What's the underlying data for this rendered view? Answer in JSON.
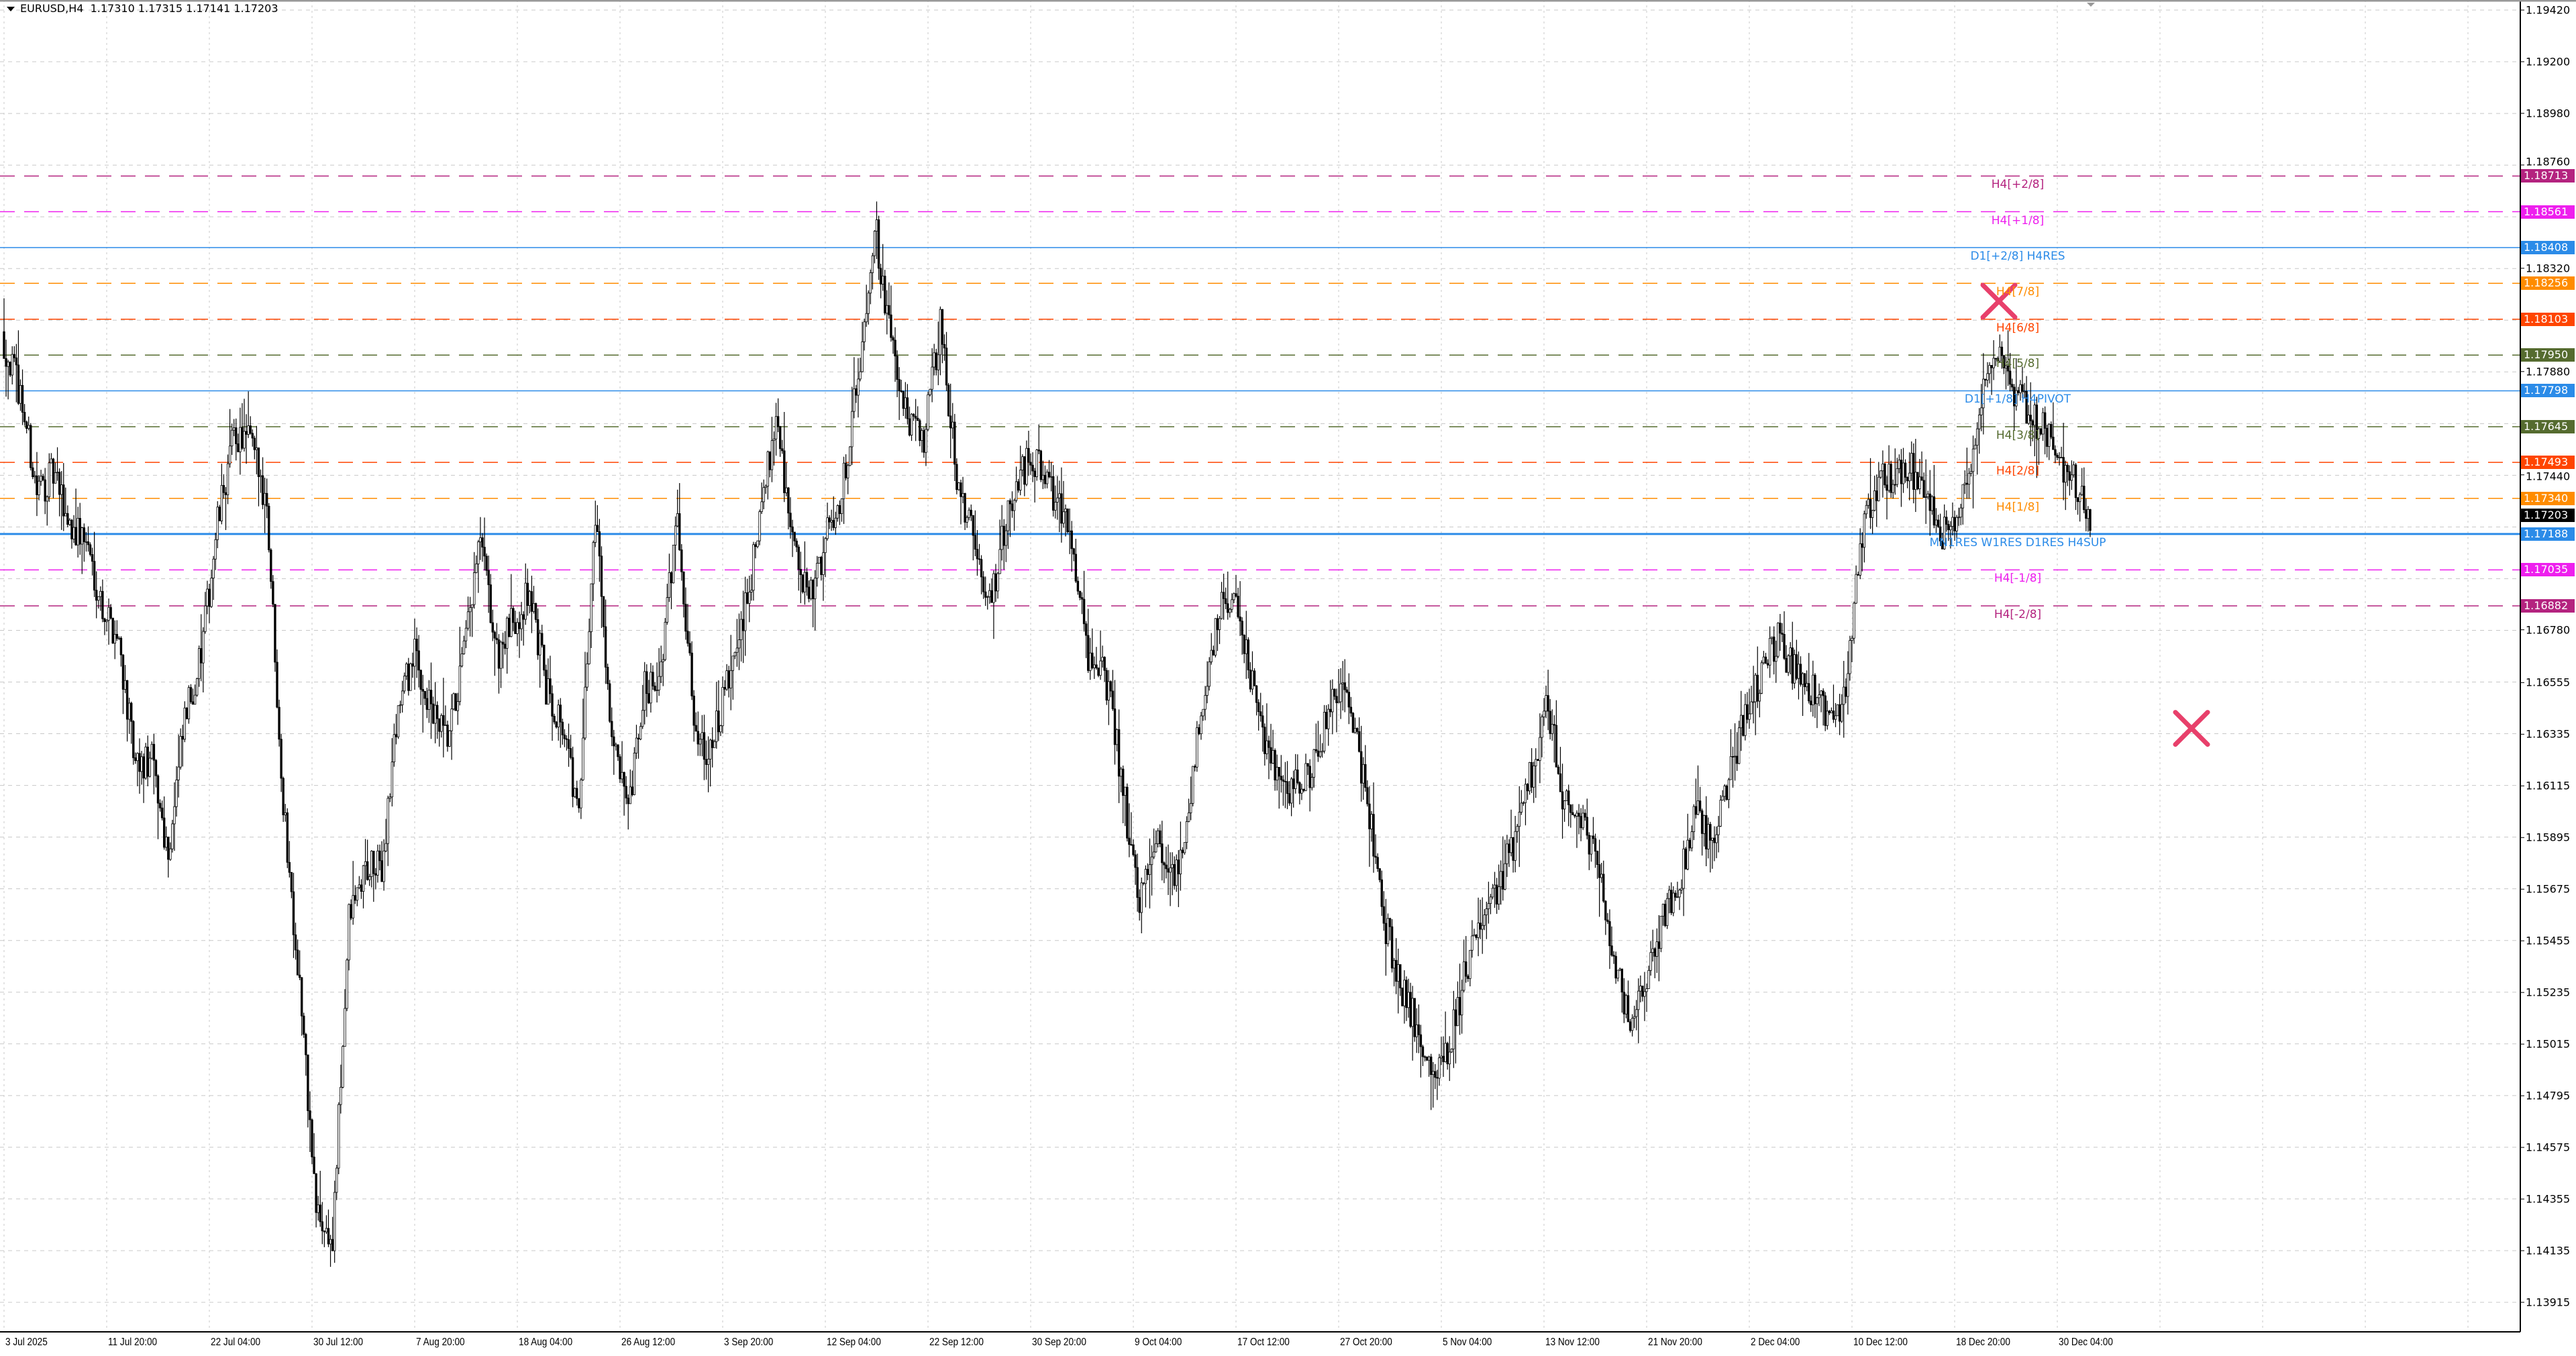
{
  "header": {
    "symbol": "EURUSD,H4",
    "ohlc": "1.17310 1.17315 1.17141 1.17203"
  },
  "chart_data": {
    "type": "candlestick",
    "symbol": "EURUSD",
    "timeframe": "H4",
    "last_bar": {
      "open": 1.1731,
      "high": 1.17315,
      "low": 1.17141,
      "close": 1.17203
    },
    "current_price_label": "1.17203",
    "current_price_color": "#000000",
    "ylim": [
      1.13915,
      1.1942
    ],
    "grid": true,
    "y_ticks": [
      "1.19420",
      "1.19200",
      "1.18980",
      "1.18760",
      "1.18320",
      "1.17880",
      "1.17440",
      "1.16780",
      "1.16555",
      "1.16335",
      "1.16115",
      "1.15895",
      "1.15675",
      "1.15455",
      "1.15235",
      "1.15015",
      "1.14795",
      "1.14575",
      "1.14355",
      "1.14135",
      "1.13915"
    ],
    "x_ticks": [
      "3 Jul 2025",
      "11 Jul 20:00",
      "22 Jul 04:00",
      "30 Jul 12:00",
      "7 Aug 20:00",
      "18 Aug 04:00",
      "26 Aug 12:00",
      "3 Sep 20:00",
      "12 Sep 04:00",
      "22 Sep 12:00",
      "30 Sep 20:00",
      "9 Oct 04:00",
      "17 Oct 12:00",
      "27 Oct 20:00",
      "5 Nov 04:00",
      "13 Nov 12:00",
      "21 Nov 20:00",
      "2 Dec 04:00",
      "10 Dec 12:00",
      "18 Dec 20:00",
      "30 Dec 04:00"
    ],
    "close_path_every_8_bars": [
      1.18,
      1.1779,
      1.1737,
      1.1744,
      1.1723,
      1.1716,
      1.1688,
      1.1674,
      1.1618,
      1.1622,
      1.1583,
      1.1639,
      1.1667,
      1.1723,
      1.1761,
      1.1758,
      1.1733,
      1.1604,
      1.1527,
      1.143,
      1.1416,
      1.1555,
      1.1576,
      1.1576,
      1.1646,
      1.1667,
      1.1643,
      1.1629,
      1.1667,
      1.1716,
      1.1667,
      1.1681,
      1.1695,
      1.1653,
      1.1639,
      1.1597,
      1.173,
      1.1632,
      1.1597,
      1.1653,
      1.166,
      1.173,
      1.1639,
      1.1625,
      1.1653,
      1.1681,
      1.1723,
      1.1772,
      1.1716,
      1.1688,
      1.1716,
      1.1737,
      1.1786,
      1.1852,
      1.18,
      1.1765,
      1.1761,
      1.1807,
      1.1744,
      1.1716,
      1.1688,
      1.1723,
      1.1747,
      1.1751,
      1.1733,
      1.1719,
      1.1667,
      1.166,
      1.1618,
      1.1562,
      1.159,
      1.1569,
      1.1594,
      1.165,
      1.1688,
      1.1688,
      1.1653,
      1.1622,
      1.1611,
      1.1611,
      1.1625,
      1.1653,
      1.1646,
      1.1604,
      1.1555,
      1.1527,
      1.151,
      1.1489,
      1.15,
      1.1534,
      1.1555,
      1.1569,
      1.159,
      1.1618,
      1.1646,
      1.1604,
      1.1597,
      1.1583,
      1.1534,
      1.1513,
      1.1527,
      1.1555,
      1.1569,
      1.1604,
      1.1583,
      1.1618,
      1.1639,
      1.166,
      1.1674,
      1.166,
      1.1653,
      1.1639,
      1.1646,
      1.1716,
      1.174,
      1.1744,
      1.1747,
      1.1733,
      1.1719,
      1.173,
      1.1761,
      1.1796,
      1.1786,
      1.1772,
      1.1765,
      1.1751,
      1.1744,
      1.172
    ],
    "levels": [
      {
        "label": "H4[+2/8]",
        "price": 1.18713,
        "price_label": "1.18713",
        "color": "#b4237f",
        "style": "dashed"
      },
      {
        "label": "H4[+1/8]",
        "price": 1.18561,
        "price_label": "1.18561",
        "color": "#ee1fee",
        "style": "dashed"
      },
      {
        "label": "D1[+2/8] H4RES",
        "price": 1.18408,
        "price_label": "1.18408",
        "color": "#2b8be8",
        "style": "solid"
      },
      {
        "label": "H4[7/8]",
        "price": 1.18256,
        "price_label": "1.18256",
        "color": "#ff8c00",
        "style": "dashed"
      },
      {
        "label": "H4[6/8]",
        "price": 1.18103,
        "price_label": "1.18103",
        "color": "#ff4500",
        "style": "dashed"
      },
      {
        "label": "H4[5/8]",
        "price": 1.1795,
        "price_label": "1.17950",
        "color": "#556b2f",
        "style": "dashed"
      },
      {
        "label": "D1[+1/8] H4PIVOT",
        "price": 1.17798,
        "price_label": "1.17798",
        "color": "#2b8be8",
        "style": "solid"
      },
      {
        "label": "H4[3/8]",
        "price": 1.17645,
        "price_label": "1.17645",
        "color": "#556b2f",
        "style": "dashed"
      },
      {
        "label": "H4[2/8]",
        "price": 1.17493,
        "price_label": "1.17493",
        "color": "#ff4500",
        "style": "dashed"
      },
      {
        "label": "H4[1/8]",
        "price": 1.1734,
        "price_label": "1.17340",
        "color": "#ff8c00",
        "style": "dashed"
      },
      {
        "label": "MN1RES W1RES D1RES H4SUP",
        "price": 1.17188,
        "price_label": "1.17188",
        "color": "#2b8be8",
        "style": "solid-thick"
      },
      {
        "label": "H4[-1/8]",
        "price": 1.17035,
        "price_label": "1.17035",
        "color": "#ee1fee",
        "style": "dashed"
      },
      {
        "label": "H4[-2/8]",
        "price": 1.16882,
        "price_label": "1.16882",
        "color": "#b4237f",
        "style": "dashed"
      }
    ],
    "markers": [
      {
        "type": "cross",
        "price": 1.1818,
        "color": "#e8406b"
      },
      {
        "type": "cross",
        "price": 1.1636,
        "color": "#e8406b"
      }
    ]
  }
}
